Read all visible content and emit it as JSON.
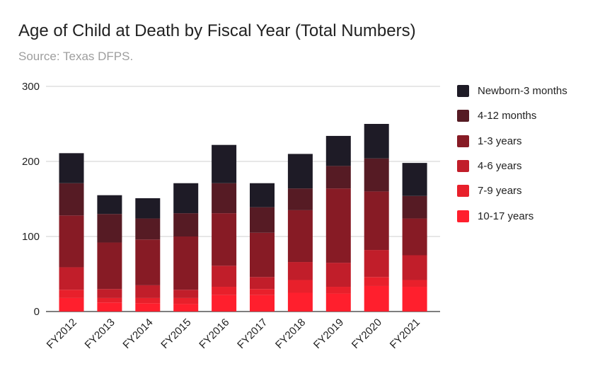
{
  "chart_data": {
    "type": "bar",
    "stacked": true,
    "title": "Age of Child at Death by Fiscal Year (Total Numbers)",
    "subtitle": "Source: Texas DFPS.",
    "xlabel": "",
    "ylabel": "",
    "ylim": [
      0,
      300
    ],
    "yticks": [
      0,
      100,
      200,
      300
    ],
    "grid": true,
    "legend_position": "right",
    "categories": [
      "FY2012",
      "FY2013",
      "FY2014",
      "FY2015",
      "FY2016",
      "FY2017",
      "FY2018",
      "FY2019",
      "FY2020",
      "FY2021"
    ],
    "series": [
      {
        "name": "10-17 years",
        "color": "#ff1f2d",
        "values": [
          18,
          12,
          11,
          10,
          22,
          22,
          25,
          24,
          34,
          33
        ]
      },
      {
        "name": "7-9 years",
        "color": "#e8202b",
        "values": [
          11,
          6,
          7,
          8,
          11,
          8,
          17,
          9,
          12,
          9
        ]
      },
      {
        "name": "4-6 years",
        "color": "#c11e2a",
        "values": [
          30,
          12,
          17,
          11,
          28,
          16,
          24,
          32,
          36,
          33
        ]
      },
      {
        "name": "1-3 years",
        "color": "#871b25",
        "values": [
          69,
          62,
          61,
          71,
          70,
          59,
          69,
          99,
          78,
          49
        ]
      },
      {
        "name": "4-12 months",
        "color": "#561b24",
        "values": [
          43,
          38,
          28,
          31,
          40,
          34,
          29,
          30,
          44,
          30
        ]
      },
      {
        "name": "Newborn-3 months",
        "color": "#1e1b26",
        "values": [
          40,
          25,
          27,
          40,
          51,
          32,
          46,
          40,
          46,
          44
        ]
      }
    ]
  }
}
